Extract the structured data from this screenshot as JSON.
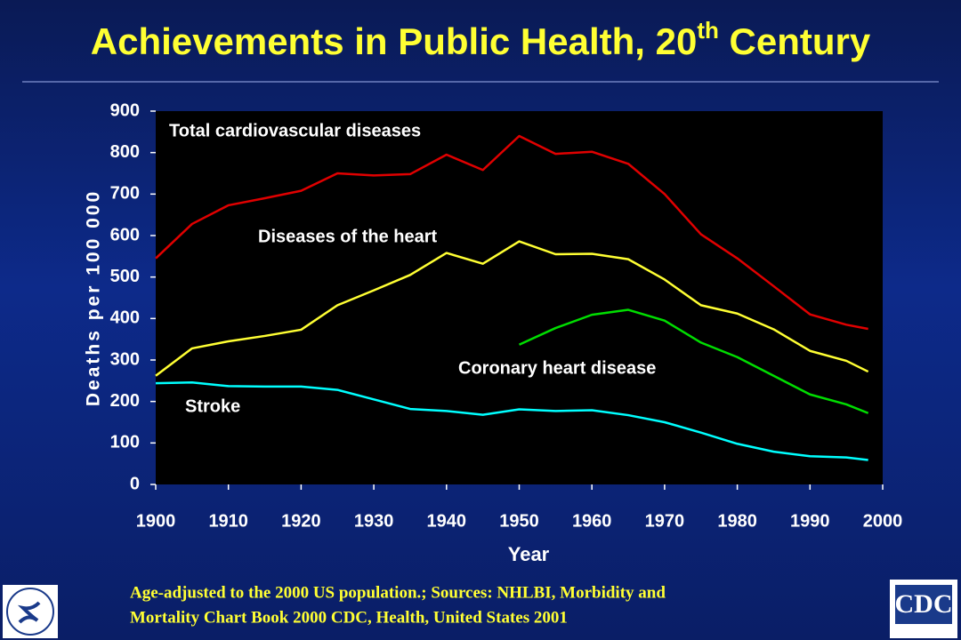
{
  "chart_data": {
    "type": "line",
    "title": [
      "Achievements in Public Health, 20",
      "th",
      " Century"
    ],
    "x_label": "Year",
    "y_label": "Deaths per 100 000",
    "note": [
      "Age-adjusted to the 2000 US population.; Sources: NHLBI, Morbidity and",
      "Mortality Chart Book 2000 CDC, Health, United States 2001"
    ],
    "x": [
      1900,
      1905,
      1910,
      1915,
      1920,
      1925,
      1930,
      1935,
      1940,
      1945,
      1950,
      1955,
      1960,
      1965,
      1970,
      1975,
      1980,
      1985,
      1990,
      1995,
      1998
    ],
    "series": [
      {
        "name": "Total cardiovascular diseases",
        "color": "#e00000",
        "values": [
          545,
          628,
          673,
          690,
          708,
          750,
          745,
          748,
          795,
          758,
          840,
          797,
          802,
          773,
          700,
          603,
          545,
          478,
          410,
          385,
          375
        ]
      },
      {
        "name": "Diseases of the heart",
        "color": "#ffff33",
        "values": [
          262,
          328,
          345,
          358,
          373,
          432,
          468,
          505,
          558,
          532,
          586,
          555,
          556,
          543,
          494,
          432,
          412,
          374,
          322,
          298,
          272
        ]
      },
      {
        "name": "Coronary heart disease",
        "color": "#00dd00",
        "values": [
          null,
          null,
          null,
          null,
          null,
          null,
          null,
          null,
          null,
          null,
          337,
          377,
          409,
          421,
          395,
          342,
          307,
          262,
          217,
          193,
          172
        ]
      },
      {
        "name": "Stroke",
        "color": "#00ffff",
        "values": [
          244,
          246,
          237,
          236,
          236,
          228,
          205,
          182,
          177,
          168,
          181,
          177,
          179,
          167,
          150,
          125,
          98,
          79,
          68,
          65,
          59
        ]
      }
    ],
    "xlim": [
      1900,
      2000
    ],
    "xticks": [
      1900,
      1910,
      1920,
      1930,
      1940,
      1950,
      1960,
      1970,
      1980,
      1990,
      2000
    ],
    "ylim": [
      0,
      900
    ],
    "yticks": [
      0,
      100,
      200,
      300,
      400,
      500,
      600,
      700,
      800,
      900
    ],
    "grid": false
  },
  "cdc_logo": "CDC"
}
